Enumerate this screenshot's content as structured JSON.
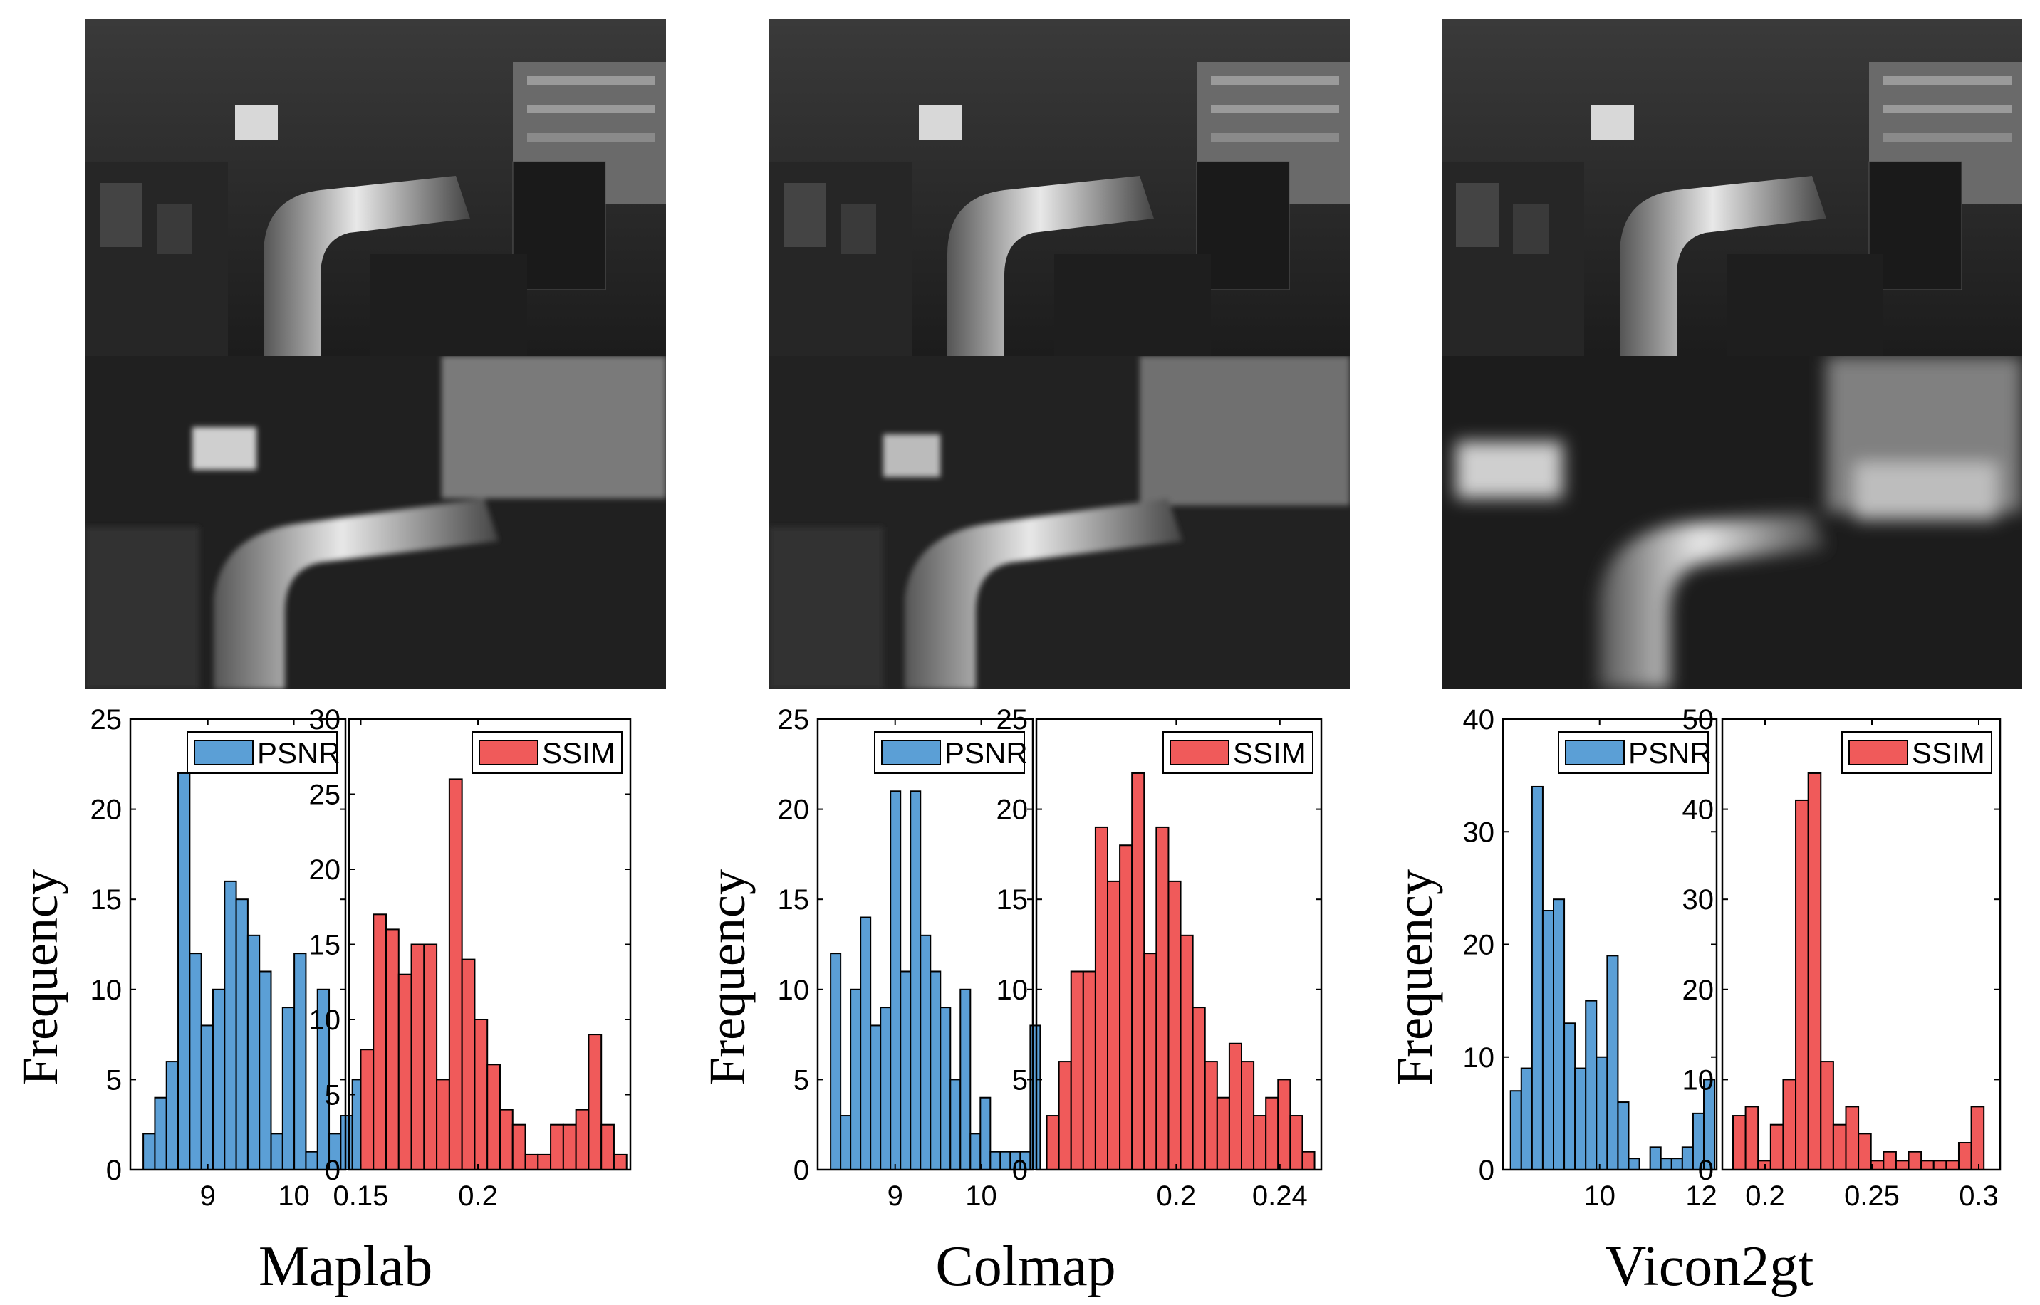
{
  "colors": {
    "psnr": "#5b9fd6",
    "ssim": "#f05a5a"
  },
  "chart_data": [
    {
      "type": "bar",
      "group": "Maplab",
      "metric": "PSNR",
      "legend": "PSNR",
      "x_start": 8.25,
      "bin_width": 0.135,
      "values": [
        2,
        4,
        6,
        22,
        12,
        8,
        10,
        16,
        15,
        13,
        11,
        2,
        9,
        12,
        1,
        10,
        2,
        3,
        5,
        5
      ],
      "xlim": [
        8.1,
        10.6
      ],
      "ylim": [
        0,
        25
      ],
      "xticks": [
        9,
        10
      ],
      "xtick_labels": [
        "9",
        "10"
      ],
      "yticks": [
        0,
        5,
        10,
        15,
        20,
        25
      ],
      "ytick_labels": [
        "0",
        "5",
        "10",
        "15",
        "20",
        "25"
      ]
    },
    {
      "type": "bar",
      "group": "Maplab",
      "metric": "SSIM",
      "legend": "SSIM",
      "x_start": 0.15,
      "bin_width": 0.0054,
      "values": [
        8,
        17,
        16,
        13,
        15,
        15,
        6,
        26,
        14,
        10,
        7,
        4,
        3,
        1,
        1,
        3,
        3,
        4,
        9,
        3,
        1
      ],
      "xlim": [
        0.145,
        0.265
      ],
      "ylim": [
        0,
        30
      ],
      "xticks": [
        0.15,
        0.2
      ],
      "xtick_labels": [
        "0.15",
        "0.2"
      ],
      "yticks": [
        0,
        5,
        10,
        15,
        20,
        25,
        30
      ],
      "ytick_labels": [
        "0",
        "5",
        "10",
        "15",
        "20",
        "25",
        "30"
      ]
    },
    {
      "type": "bar",
      "group": "Colmap",
      "metric": "PSNR",
      "legend": "PSNR",
      "x_start": 8.25,
      "bin_width": 0.116,
      "values": [
        12,
        3,
        10,
        14,
        8,
        9,
        21,
        11,
        21,
        13,
        11,
        9,
        5,
        10,
        2,
        4,
        1,
        1,
        1,
        1,
        8
      ],
      "xlim": [
        8.1,
        10.6
      ],
      "ylim": [
        0,
        25
      ],
      "xticks": [
        9,
        10
      ],
      "xtick_labels": [
        "9",
        "10"
      ],
      "yticks": [
        0,
        5,
        10,
        15,
        20,
        25
      ],
      "ytick_labels": [
        "0",
        "5",
        "10",
        "15",
        "20",
        "25"
      ]
    },
    {
      "type": "bar",
      "group": "Colmap",
      "metric": "SSIM",
      "legend": "SSIM",
      "x_start": 0.15,
      "bin_width": 0.0047,
      "values": [
        3,
        6,
        11,
        11,
        19,
        16,
        18,
        22,
        12,
        19,
        16,
        13,
        9,
        6,
        4,
        7,
        6,
        3,
        4,
        5,
        3,
        1
      ],
      "xlim": [
        0.146,
        0.256
      ],
      "ylim": [
        0,
        25
      ],
      "xticks": [
        0.2,
        0.24
      ],
      "xtick_labels": [
        "0.2",
        "0.24"
      ],
      "yticks": [
        0,
        5,
        10,
        15,
        20,
        25
      ],
      "ytick_labels": [
        "0",
        "5",
        "10",
        "15",
        "20",
        "25"
      ]
    },
    {
      "type": "bar",
      "group": "Vicon2gt",
      "metric": "PSNR",
      "legend": "PSNR",
      "x_start": 8.25,
      "bin_width": 0.211,
      "values": [
        7,
        9,
        34,
        23,
        24,
        13,
        9,
        15,
        10,
        19,
        6,
        1,
        0,
        2,
        1,
        1,
        2,
        5,
        8
      ],
      "xlim": [
        8.1,
        12.3
      ],
      "ylim": [
        0,
        40
      ],
      "xticks": [
        10,
        12
      ],
      "xtick_labels": [
        "10",
        "12"
      ],
      "yticks": [
        0,
        10,
        20,
        30,
        40
      ],
      "ytick_labels": [
        "0",
        "10",
        "20",
        "30",
        "40"
      ]
    },
    {
      "type": "bar",
      "group": "Vicon2gt",
      "metric": "SSIM",
      "legend": "SSIM",
      "x_start": 0.185,
      "bin_width": 0.00587,
      "values": [
        6,
        7,
        1,
        5,
        10,
        41,
        44,
        12,
        5,
        7,
        4,
        1,
        2,
        1,
        2,
        1,
        1,
        1,
        3,
        7
      ],
      "xlim": [
        0.18,
        0.31
      ],
      "ylim": [
        0,
        50
      ],
      "xticks": [
        0.2,
        0.25,
        0.3
      ],
      "xtick_labels": [
        "0.2",
        "0.25",
        "0.3"
      ],
      "yticks": [
        0,
        10,
        20,
        30,
        40,
        50
      ],
      "ytick_labels": [
        "0",
        "10",
        "20",
        "30",
        "40",
        "50"
      ]
    }
  ],
  "ylabel": "Frequency",
  "groups": [
    "Maplab",
    "Colmap",
    "Vicon2gt"
  ]
}
